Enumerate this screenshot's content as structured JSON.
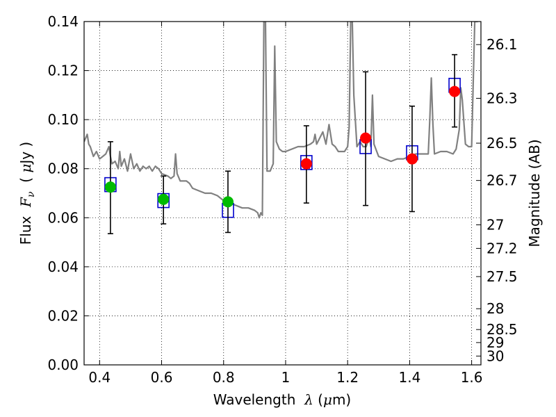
{
  "chart_data": {
    "type": "scatter",
    "xlabel": "Wavelength  λ (μm)",
    "ylabel": "Flux  F_ν  ( μJy )",
    "ylabel_right": "Magnitude (AB)",
    "xlim": [
      0.35,
      1.63
    ],
    "ylim": [
      0,
      0.14
    ],
    "grid": true,
    "x_ticks": [
      0.4,
      0.6,
      0.8,
      1.0,
      1.2,
      1.4,
      1.6
    ],
    "x_tick_labels": [
      "0.4",
      "0.6",
      "0.8",
      "1",
      "1.2",
      "1.4",
      "1.6"
    ],
    "y_ticks": [
      0.0,
      0.02,
      0.04,
      0.06,
      0.08,
      0.1,
      0.12,
      0.14
    ],
    "y_tick_labels": [
      "0.00",
      "0.02",
      "0.04",
      "0.06",
      "0.08",
      "0.10",
      "0.12",
      "0.14"
    ],
    "right_axis_ticks": [
      {
        "label": "26.1",
        "flux": 0.1306
      },
      {
        "label": "26.3",
        "flux": 0.1087
      },
      {
        "label": "26.5",
        "flux": 0.0904
      },
      {
        "label": "26.7",
        "flux": 0.0752
      },
      {
        "label": "27",
        "flux": 0.0571
      },
      {
        "label": "27.2",
        "flux": 0.0475
      },
      {
        "label": "27.5",
        "flux": 0.036
      },
      {
        "label": "28",
        "flux": 0.0229
      },
      {
        "label": "28.5",
        "flux": 0.0144
      },
      {
        "label": "29",
        "flux": 0.0091
      },
      {
        "label": "30",
        "flux": 0.0036
      }
    ],
    "series": [
      {
        "kind": "observed-optical",
        "color": "#00bb00",
        "points": [
          {
            "x": 0.435,
            "y": 0.0725,
            "ylo": 0.0535,
            "yhi": 0.091
          },
          {
            "x": 0.606,
            "y": 0.0675,
            "ylo": 0.0575,
            "yhi": 0.077
          },
          {
            "x": 0.814,
            "y": 0.0665,
            "ylo": 0.054,
            "yhi": 0.079
          }
        ]
      },
      {
        "kind": "observed-nir",
        "color": "#ff0000",
        "points": [
          {
            "x": 1.067,
            "y": 0.082,
            "ylo": 0.066,
            "yhi": 0.0975
          },
          {
            "x": 1.258,
            "y": 0.0925,
            "ylo": 0.065,
            "yhi": 0.1195
          },
          {
            "x": 1.408,
            "y": 0.084,
            "ylo": 0.0625,
            "yhi": 0.1055
          },
          {
            "x": 1.545,
            "y": 0.1115,
            "ylo": 0.097,
            "yhi": 0.1265
          }
        ]
      },
      {
        "kind": "model-synthetic",
        "color": "#0000cc",
        "marker": "open-square",
        "points": [
          {
            "x": 0.435,
            "y": 0.0735
          },
          {
            "x": 0.606,
            "y": 0.067
          },
          {
            "x": 0.814,
            "y": 0.063
          },
          {
            "x": 1.067,
            "y": 0.0825
          },
          {
            "x": 1.258,
            "y": 0.089
          },
          {
            "x": 1.408,
            "y": 0.0865
          },
          {
            "x": 1.545,
            "y": 0.114
          }
        ]
      },
      {
        "kind": "model-spectrum",
        "color": "#808080",
        "line": [
          [
            0.35,
            0.091
          ],
          [
            0.36,
            0.094
          ],
          [
            0.365,
            0.09
          ],
          [
            0.37,
            0.089
          ],
          [
            0.38,
            0.085
          ],
          [
            0.39,
            0.087
          ],
          [
            0.4,
            0.084
          ],
          [
            0.41,
            0.085
          ],
          [
            0.42,
            0.086
          ],
          [
            0.43,
            0.089
          ],
          [
            0.435,
            0.085
          ],
          [
            0.44,
            0.082
          ],
          [
            0.45,
            0.083
          ],
          [
            0.46,
            0.08
          ],
          [
            0.465,
            0.087
          ],
          [
            0.47,
            0.081
          ],
          [
            0.48,
            0.084
          ],
          [
            0.49,
            0.079
          ],
          [
            0.5,
            0.086
          ],
          [
            0.51,
            0.08
          ],
          [
            0.52,
            0.082
          ],
          [
            0.53,
            0.079
          ],
          [
            0.54,
            0.081
          ],
          [
            0.55,
            0.08
          ],
          [
            0.56,
            0.081
          ],
          [
            0.57,
            0.079
          ],
          [
            0.58,
            0.081
          ],
          [
            0.59,
            0.08
          ],
          [
            0.6,
            0.078
          ],
          [
            0.62,
            0.077
          ],
          [
            0.63,
            0.076
          ],
          [
            0.64,
            0.077
          ],
          [
            0.645,
            0.086
          ],
          [
            0.65,
            0.078
          ],
          [
            0.66,
            0.075
          ],
          [
            0.68,
            0.075
          ],
          [
            0.69,
            0.074
          ],
          [
            0.7,
            0.072
          ],
          [
            0.72,
            0.071
          ],
          [
            0.74,
            0.07
          ],
          [
            0.76,
            0.07
          ],
          [
            0.78,
            0.069
          ],
          [
            0.8,
            0.067
          ],
          [
            0.82,
            0.066
          ],
          [
            0.84,
            0.065
          ],
          [
            0.86,
            0.064
          ],
          [
            0.88,
            0.064
          ],
          [
            0.9,
            0.063
          ],
          [
            0.91,
            0.062
          ],
          [
            0.915,
            0.06
          ],
          [
            0.92,
            0.062
          ],
          [
            0.925,
            0.061
          ],
          [
            0.93,
            0.14
          ],
          [
            0.935,
            0.14
          ],
          [
            0.94,
            0.079
          ],
          [
            0.95,
            0.079
          ],
          [
            0.96,
            0.082
          ],
          [
            0.965,
            0.13
          ],
          [
            0.97,
            0.091
          ],
          [
            0.98,
            0.088
          ],
          [
            0.99,
            0.087
          ],
          [
            1.0,
            0.087
          ],
          [
            1.02,
            0.088
          ],
          [
            1.04,
            0.089
          ],
          [
            1.06,
            0.089
          ],
          [
            1.08,
            0.09
          ],
          [
            1.09,
            0.091
          ],
          [
            1.095,
            0.094
          ],
          [
            1.1,
            0.09
          ],
          [
            1.12,
            0.095
          ],
          [
            1.13,
            0.09
          ],
          [
            1.14,
            0.098
          ],
          [
            1.15,
            0.09
          ],
          [
            1.16,
            0.089
          ],
          [
            1.17,
            0.087
          ],
          [
            1.18,
            0.087
          ],
          [
            1.19,
            0.087
          ],
          [
            1.2,
            0.089
          ],
          [
            1.205,
            0.097
          ],
          [
            1.21,
            0.14
          ],
          [
            1.215,
            0.14
          ],
          [
            1.22,
            0.11
          ],
          [
            1.23,
            0.089
          ],
          [
            1.24,
            0.091
          ],
          [
            1.25,
            0.089
          ],
          [
            1.26,
            0.089
          ],
          [
            1.27,
            0.093
          ],
          [
            1.275,
            0.089
          ],
          [
            1.28,
            0.11
          ],
          [
            1.285,
            0.09
          ],
          [
            1.3,
            0.085
          ],
          [
            1.32,
            0.084
          ],
          [
            1.34,
            0.083
          ],
          [
            1.36,
            0.084
          ],
          [
            1.38,
            0.084
          ],
          [
            1.4,
            0.085
          ],
          [
            1.42,
            0.086
          ],
          [
            1.44,
            0.086
          ],
          [
            1.46,
            0.086
          ],
          [
            1.465,
            0.1
          ],
          [
            1.47,
            0.117
          ],
          [
            1.475,
            0.098
          ],
          [
            1.48,
            0.086
          ],
          [
            1.5,
            0.087
          ],
          [
            1.52,
            0.087
          ],
          [
            1.54,
            0.086
          ],
          [
            1.55,
            0.088
          ],
          [
            1.56,
            0.096
          ],
          [
            1.565,
            0.113
          ],
          [
            1.57,
            0.108
          ],
          [
            1.58,
            0.09
          ],
          [
            1.59,
            0.089
          ],
          [
            1.6,
            0.089
          ],
          [
            1.61,
            0.14
          ],
          [
            1.62,
            0.14
          ]
        ]
      }
    ]
  }
}
